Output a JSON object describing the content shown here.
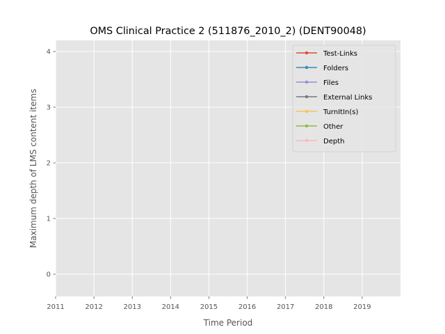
{
  "chart_data": {
    "type": "line",
    "title": "OMS Clinical Practice 2 (511876_2010_2) (DENT90048)",
    "xlabel": "Time Period",
    "ylabel": "Maximum depth of LMS content items",
    "xlim": [
      2011,
      2020
    ],
    "ylim": [
      -0.4,
      4.2
    ],
    "xticks": [
      "2011",
      "2012",
      "2013",
      "2014",
      "2015",
      "2016",
      "2017",
      "2018",
      "2019"
    ],
    "yticks": [
      "0",
      "1",
      "2",
      "3",
      "4"
    ],
    "grid": true,
    "legend_position": "top-right",
    "series": [
      {
        "name": "Test-Links",
        "color": "#E24A33",
        "values": []
      },
      {
        "name": "Folders",
        "color": "#348ABD",
        "values": []
      },
      {
        "name": "Files",
        "color": "#988ED5",
        "values": []
      },
      {
        "name": "External Links",
        "color": "#777777",
        "values": []
      },
      {
        "name": "TurnItIn(s)",
        "color": "#FBC15E",
        "values": []
      },
      {
        "name": "Other",
        "color": "#8EBA42",
        "values": []
      },
      {
        "name": "Depth",
        "color": "#FFB5B8",
        "values": []
      }
    ]
  }
}
